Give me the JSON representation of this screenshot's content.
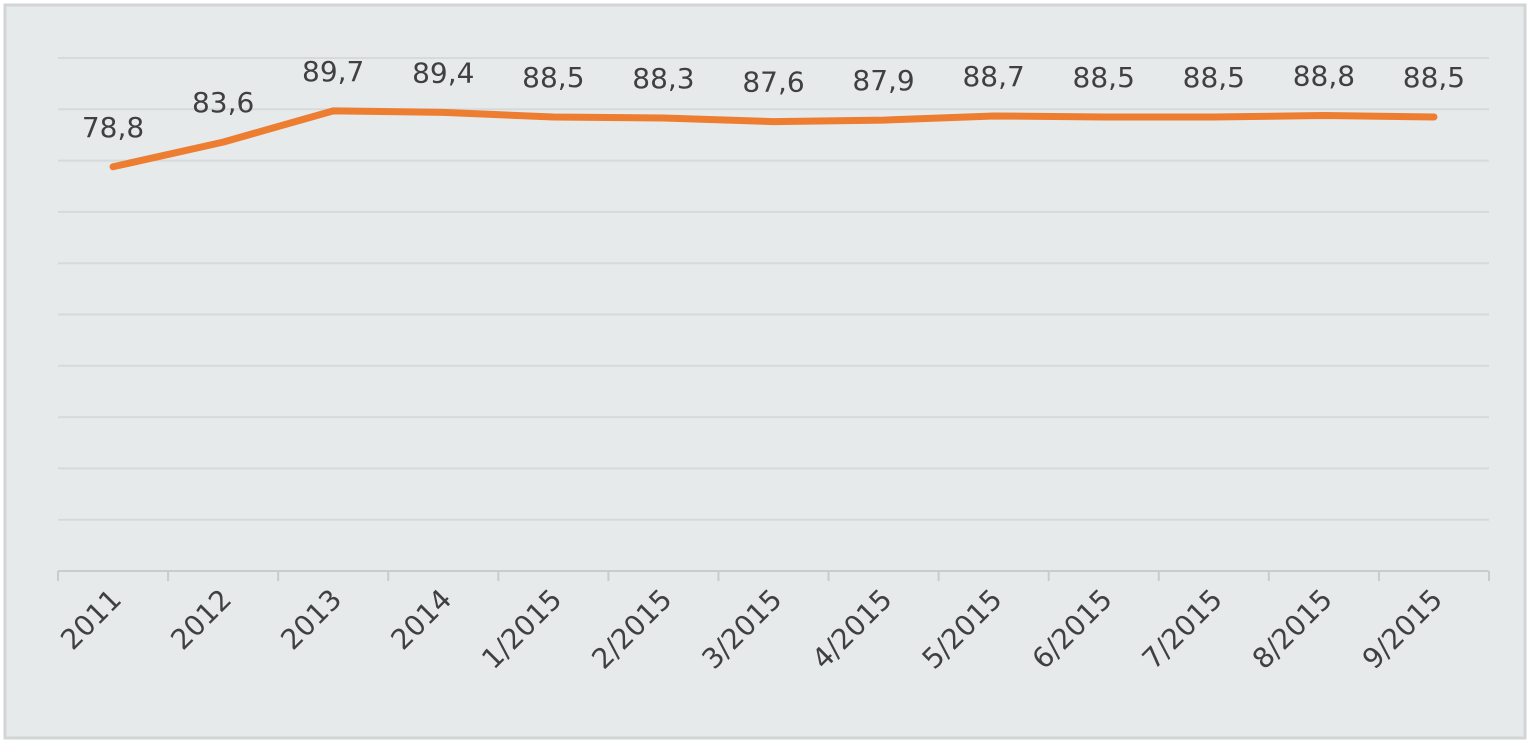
{
  "chart_data": {
    "type": "line",
    "categories": [
      "2011",
      "2012",
      "2013",
      "2014",
      "1/2015",
      "2/2015",
      "3/2015",
      "4/2015",
      "5/2015",
      "6/2015",
      "7/2015",
      "8/2015",
      "9/2015"
    ],
    "series": [
      {
        "color": "#ed7d31",
        "values": [
          78.8,
          83.6,
          89.7,
          89.4,
          88.5,
          88.3,
          87.6,
          87.9,
          88.7,
          88.5,
          88.5,
          88.8,
          88.5
        ],
        "value_labels": [
          "78,8",
          "83,6",
          "89,7",
          "89,4",
          "88,5",
          "88,3",
          "87,6",
          "87,9",
          "88,7",
          "88,5",
          "88,5",
          "88,8",
          "88,5"
        ]
      }
    ],
    "ylim": [
      0,
      100
    ],
    "yticks": [
      0,
      10,
      20,
      30,
      40,
      50,
      60,
      70,
      80,
      90,
      100
    ],
    "grid": true
  }
}
